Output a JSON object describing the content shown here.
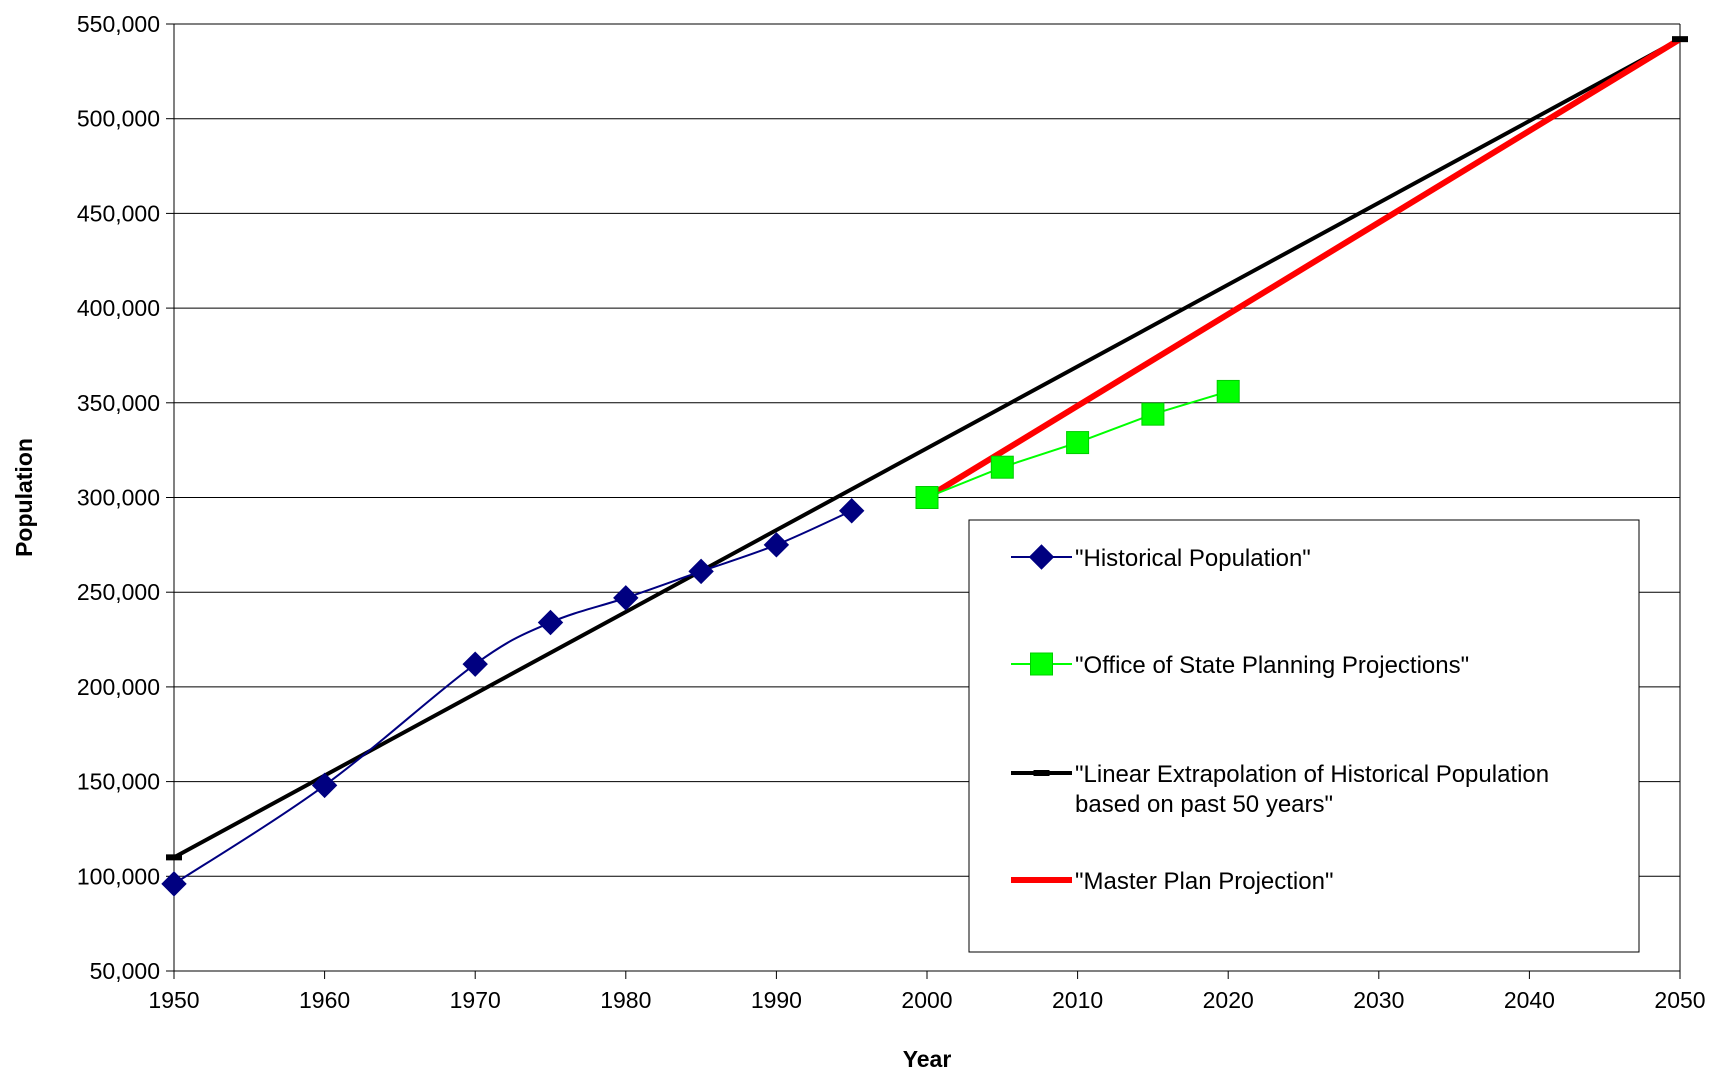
{
  "chart_data": {
    "type": "line",
    "title": "",
    "xlabel": "Year",
    "ylabel": "Population",
    "xlim": [
      1950,
      2050
    ],
    "ylim": [
      50000,
      550000
    ],
    "x_ticks": [
      1950,
      1960,
      1970,
      1980,
      1990,
      2000,
      2010,
      2020,
      2030,
      2040,
      2050
    ],
    "x_tick_labels": [
      "1950",
      "1960",
      "1970",
      "1980",
      "1990",
      "2000",
      "2010",
      "2020",
      "2030",
      "2040",
      "2050"
    ],
    "y_ticks": [
      50000,
      100000,
      150000,
      200000,
      250000,
      300000,
      350000,
      400000,
      450000,
      500000,
      550000
    ],
    "y_tick_labels": [
      "50,000",
      "100,000",
      "150,000",
      "200,000",
      "250,000",
      "300,000",
      "350,000",
      "400,000",
      "450,000",
      "500,000",
      "550,000"
    ],
    "grid": "horizontal",
    "legend": {
      "placement": "lower-right",
      "entries": [
        {
          "label": "\"Historical Population\"",
          "series": 0
        },
        {
          "label": "\"Office of State Planning Projections\"",
          "series": 1
        },
        {
          "label": "\"Linear Extrapolation of Historical Population",
          "label_line2": "based on past 50 years\"",
          "series": 2
        },
        {
          "label": "\"Master Plan Projection\"",
          "series": 3
        }
      ]
    },
    "series": [
      {
        "name": "\"Historical Population\"",
        "color": "#000080",
        "marker": "diamond",
        "line": "smooth",
        "x": [
          1950,
          1960,
          1970,
          1975,
          1980,
          1985,
          1990,
          1995
        ],
        "y": [
          96000,
          148000,
          212000,
          234000,
          247000,
          261000,
          275000,
          293000
        ]
      },
      {
        "name": "\"Office of State Planning Projections\"",
        "color": "#00ff00",
        "marker": "square",
        "line": "straight",
        "x": [
          2000,
          2005,
          2010,
          2015,
          2020
        ],
        "y": [
          300000,
          316000,
          329000,
          344000,
          356000
        ]
      },
      {
        "name": "\"Linear Extrapolation of Historical Population based on past 50 years\"",
        "color": "#000000",
        "marker": "dash",
        "line": "straight",
        "x": [
          1950,
          2050
        ],
        "y": [
          110000,
          542000
        ]
      },
      {
        "name": "\"Master Plan Projection\"",
        "color": "#ff0000",
        "marker": "none",
        "line": "straight",
        "x": [
          2000,
          2050
        ],
        "y": [
          300000,
          542000
        ]
      }
    ]
  }
}
